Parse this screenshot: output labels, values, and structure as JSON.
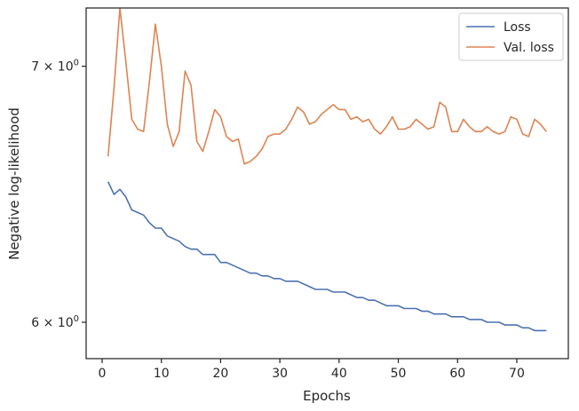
{
  "chart_data": {
    "type": "line",
    "xlabel": "Epochs",
    "ylabel": "Negative log-likelihood",
    "xlim": [
      -2.7,
      78.7
    ],
    "ylim": [
      5.87,
      7.25
    ],
    "yscale": "log",
    "grid": false,
    "legend_position": "top-right",
    "x_ticks": [
      {
        "value": 0,
        "label": "0"
      },
      {
        "value": 10,
        "label": "10"
      },
      {
        "value": 20,
        "label": "20"
      },
      {
        "value": 30,
        "label": "30"
      },
      {
        "value": 40,
        "label": "40"
      },
      {
        "value": 50,
        "label": "50"
      },
      {
        "value": 60,
        "label": "60"
      },
      {
        "value": 70,
        "label": "70"
      }
    ],
    "y_ticks": [
      {
        "value": 6,
        "base": "6 × 10",
        "exp": "0"
      },
      {
        "value": 7,
        "base": "7 × 10",
        "exp": "0"
      }
    ],
    "x": [
      1,
      2,
      3,
      4,
      5,
      6,
      7,
      8,
      9,
      10,
      11,
      12,
      13,
      14,
      15,
      16,
      17,
      18,
      19,
      20,
      21,
      22,
      23,
      24,
      25,
      26,
      27,
      28,
      29,
      30,
      31,
      32,
      33,
      34,
      35,
      36,
      37,
      38,
      39,
      40,
      41,
      42,
      43,
      44,
      45,
      46,
      47,
      48,
      49,
      50,
      51,
      52,
      53,
      54,
      55,
      56,
      57,
      58,
      59,
      60,
      61,
      62,
      63,
      64,
      65,
      66,
      67,
      68,
      69,
      70,
      71,
      72,
      73,
      74,
      75
    ],
    "series": [
      {
        "name": "Loss",
        "color": "#4c72b0",
        "values": [
          6.53,
          6.48,
          6.5,
          6.47,
          6.42,
          6.41,
          6.4,
          6.37,
          6.35,
          6.35,
          6.32,
          6.31,
          6.3,
          6.28,
          6.27,
          6.27,
          6.25,
          6.25,
          6.25,
          6.22,
          6.22,
          6.21,
          6.2,
          6.19,
          6.18,
          6.18,
          6.17,
          6.17,
          6.16,
          6.16,
          6.15,
          6.15,
          6.15,
          6.14,
          6.13,
          6.12,
          6.12,
          6.12,
          6.11,
          6.11,
          6.11,
          6.1,
          6.09,
          6.09,
          6.08,
          6.08,
          6.07,
          6.06,
          6.06,
          6.06,
          6.05,
          6.05,
          6.05,
          6.04,
          6.04,
          6.03,
          6.03,
          6.03,
          6.02,
          6.02,
          6.02,
          6.01,
          6.01,
          6.01,
          6.0,
          6.0,
          6.0,
          5.99,
          5.99,
          5.99,
          5.98,
          5.98,
          5.97,
          5.97,
          5.97
        ]
      },
      {
        "name": "Val. loss",
        "color": "#dd8452",
        "values": [
          6.63,
          6.91,
          7.25,
          7.02,
          6.78,
          6.74,
          6.73,
          6.94,
          7.18,
          7.0,
          6.76,
          6.67,
          6.73,
          6.98,
          6.92,
          6.69,
          6.65,
          6.73,
          6.82,
          6.79,
          6.71,
          6.69,
          6.7,
          6.6,
          6.61,
          6.63,
          6.66,
          6.71,
          6.72,
          6.72,
          6.74,
          6.78,
          6.83,
          6.81,
          6.76,
          6.77,
          6.8,
          6.82,
          6.84,
          6.82,
          6.82,
          6.78,
          6.79,
          6.77,
          6.78,
          6.74,
          6.72,
          6.75,
          6.79,
          6.74,
          6.74,
          6.75,
          6.78,
          6.76,
          6.74,
          6.75,
          6.85,
          6.83,
          6.73,
          6.73,
          6.78,
          6.75,
          6.73,
          6.73,
          6.75,
          6.73,
          6.72,
          6.73,
          6.79,
          6.78,
          6.72,
          6.71,
          6.78,
          6.76,
          6.73
        ]
      }
    ]
  }
}
